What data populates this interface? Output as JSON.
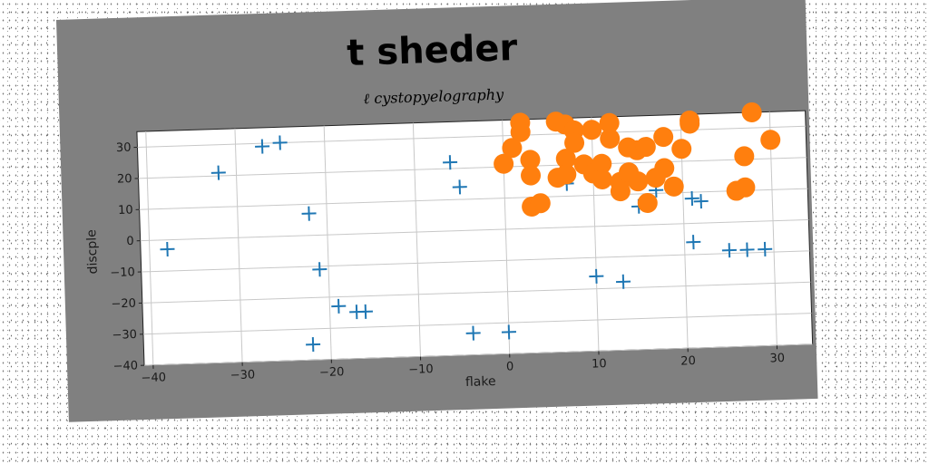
{
  "chart_data": {
    "type": "scatter",
    "title": "t sheder",
    "subtitle": "ℓ cystopyelography",
    "xlabel": "flake",
    "ylabel": "discple",
    "xlim": [
      -41,
      34
    ],
    "ylim": [
      -40,
      35
    ],
    "xticks": [
      -40,
      -30,
      -20,
      -10,
      0,
      10,
      20,
      30
    ],
    "yticks": [
      -40,
      -30,
      -20,
      -10,
      0,
      10,
      20,
      30
    ],
    "grid": true,
    "series": [
      {
        "marker": "plus",
        "color": "#1f77b4",
        "points": [
          [
            -38,
            -3
          ],
          [
            -32,
            21
          ],
          [
            -27,
            29
          ],
          [
            -25,
            30
          ],
          [
            -22,
            7
          ],
          [
            -21,
            -11
          ],
          [
            -22,
            -35
          ],
          [
            -19,
            -23
          ],
          [
            -17,
            -25
          ],
          [
            -16,
            -25
          ],
          [
            -6,
            22
          ],
          [
            -5,
            14
          ],
          [
            -4,
            -33
          ],
          [
            0,
            -33
          ],
          [
            7,
            14
          ],
          [
            10,
            -16
          ],
          [
            13,
            -18
          ],
          [
            15,
            6
          ],
          [
            17,
            11
          ],
          [
            21,
            8
          ],
          [
            22,
            7
          ],
          [
            21,
            -6
          ],
          [
            25,
            -9
          ],
          [
            27,
            -9
          ],
          [
            29,
            -9
          ]
        ]
      },
      {
        "marker": "circle",
        "color": "#ff7f0e",
        "points": [
          [
            2,
            34
          ],
          [
            2,
            31
          ],
          [
            1,
            26
          ],
          [
            0,
            21
          ],
          [
            3,
            22
          ],
          [
            3,
            17
          ],
          [
            3,
            7
          ],
          [
            4,
            8
          ],
          [
            6,
            34
          ],
          [
            7,
            33
          ],
          [
            8,
            31
          ],
          [
            8,
            27
          ],
          [
            7,
            22
          ],
          [
            6,
            16
          ],
          [
            7,
            17
          ],
          [
            9,
            20
          ],
          [
            10,
            31
          ],
          [
            10,
            17
          ],
          [
            11,
            20
          ],
          [
            11,
            15
          ],
          [
            12,
            28
          ],
          [
            12,
            33
          ],
          [
            13,
            11
          ],
          [
            13,
            14
          ],
          [
            14,
            17
          ],
          [
            14,
            25
          ],
          [
            15,
            24
          ],
          [
            15,
            14
          ],
          [
            16,
            7
          ],
          [
            16,
            25
          ],
          [
            17,
            15
          ],
          [
            18,
            28
          ],
          [
            18,
            18
          ],
          [
            19,
            12
          ],
          [
            20,
            24
          ],
          [
            21,
            32
          ],
          [
            21,
            33
          ],
          [
            26,
            10
          ],
          [
            27,
            11
          ],
          [
            27,
            21
          ],
          [
            28,
            35
          ],
          [
            30,
            26
          ]
        ]
      }
    ]
  }
}
